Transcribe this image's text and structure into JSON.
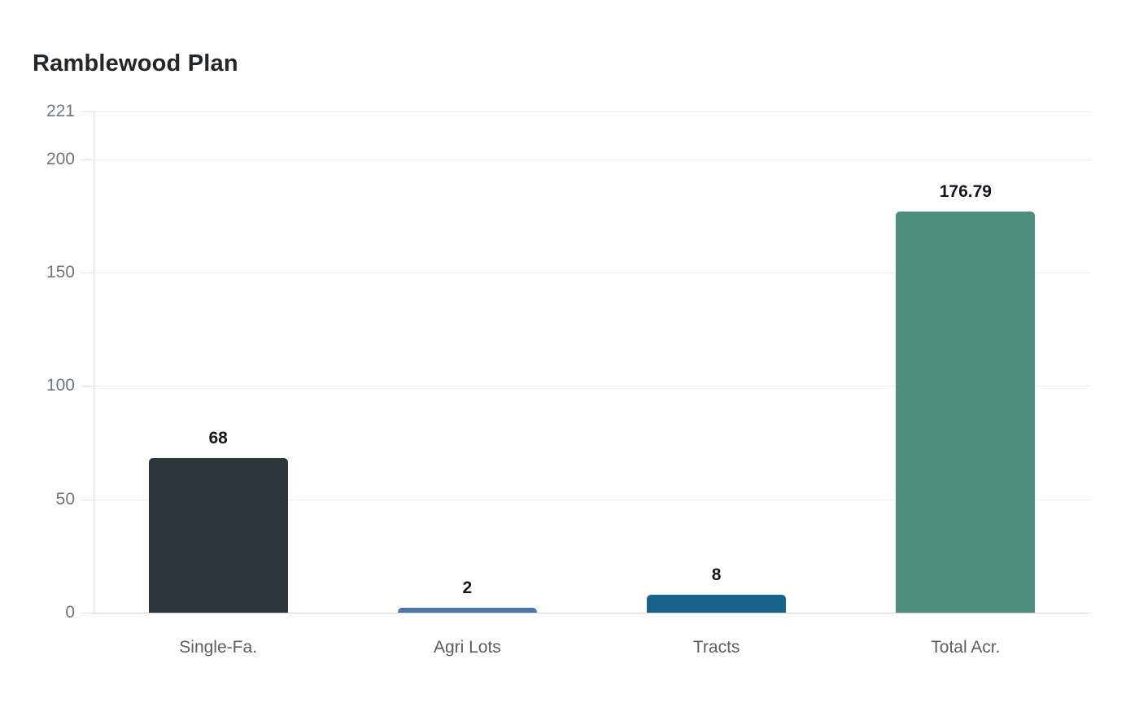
{
  "title": "Ramblewood Plan",
  "colors": {
    "background": "#ffffff",
    "title_text": "#21262b",
    "grid_line": "#ececec",
    "baseline": "#d5d5d5",
    "axis_line": "#e3e3e3",
    "y_tick_text": "#6d767c",
    "category_text": "#575f63",
    "value_label_text": "#14181c"
  },
  "chart_data": {
    "type": "bar",
    "title": "Ramblewood Plan",
    "categories": [
      "Single-Fa.",
      "Agri Lots",
      "Tracts",
      "Total Acr."
    ],
    "values": [
      68,
      2,
      8,
      176.79
    ],
    "value_labels": [
      "68",
      "2",
      "8",
      "176.79"
    ],
    "bar_colors": [
      "#2b363a",
      "#4a76ab",
      "#17638e",
      "#4f8d7d"
    ],
    "xlabel": "",
    "ylabel": "",
    "ylim": [
      0,
      221
    ],
    "yticks": [
      0,
      50,
      100,
      150,
      200,
      221
    ],
    "ytick_labels": [
      "0",
      "50",
      "100",
      "150",
      "200",
      "221"
    ],
    "grid": true,
    "legend": false,
    "orientation": "vertical"
  }
}
